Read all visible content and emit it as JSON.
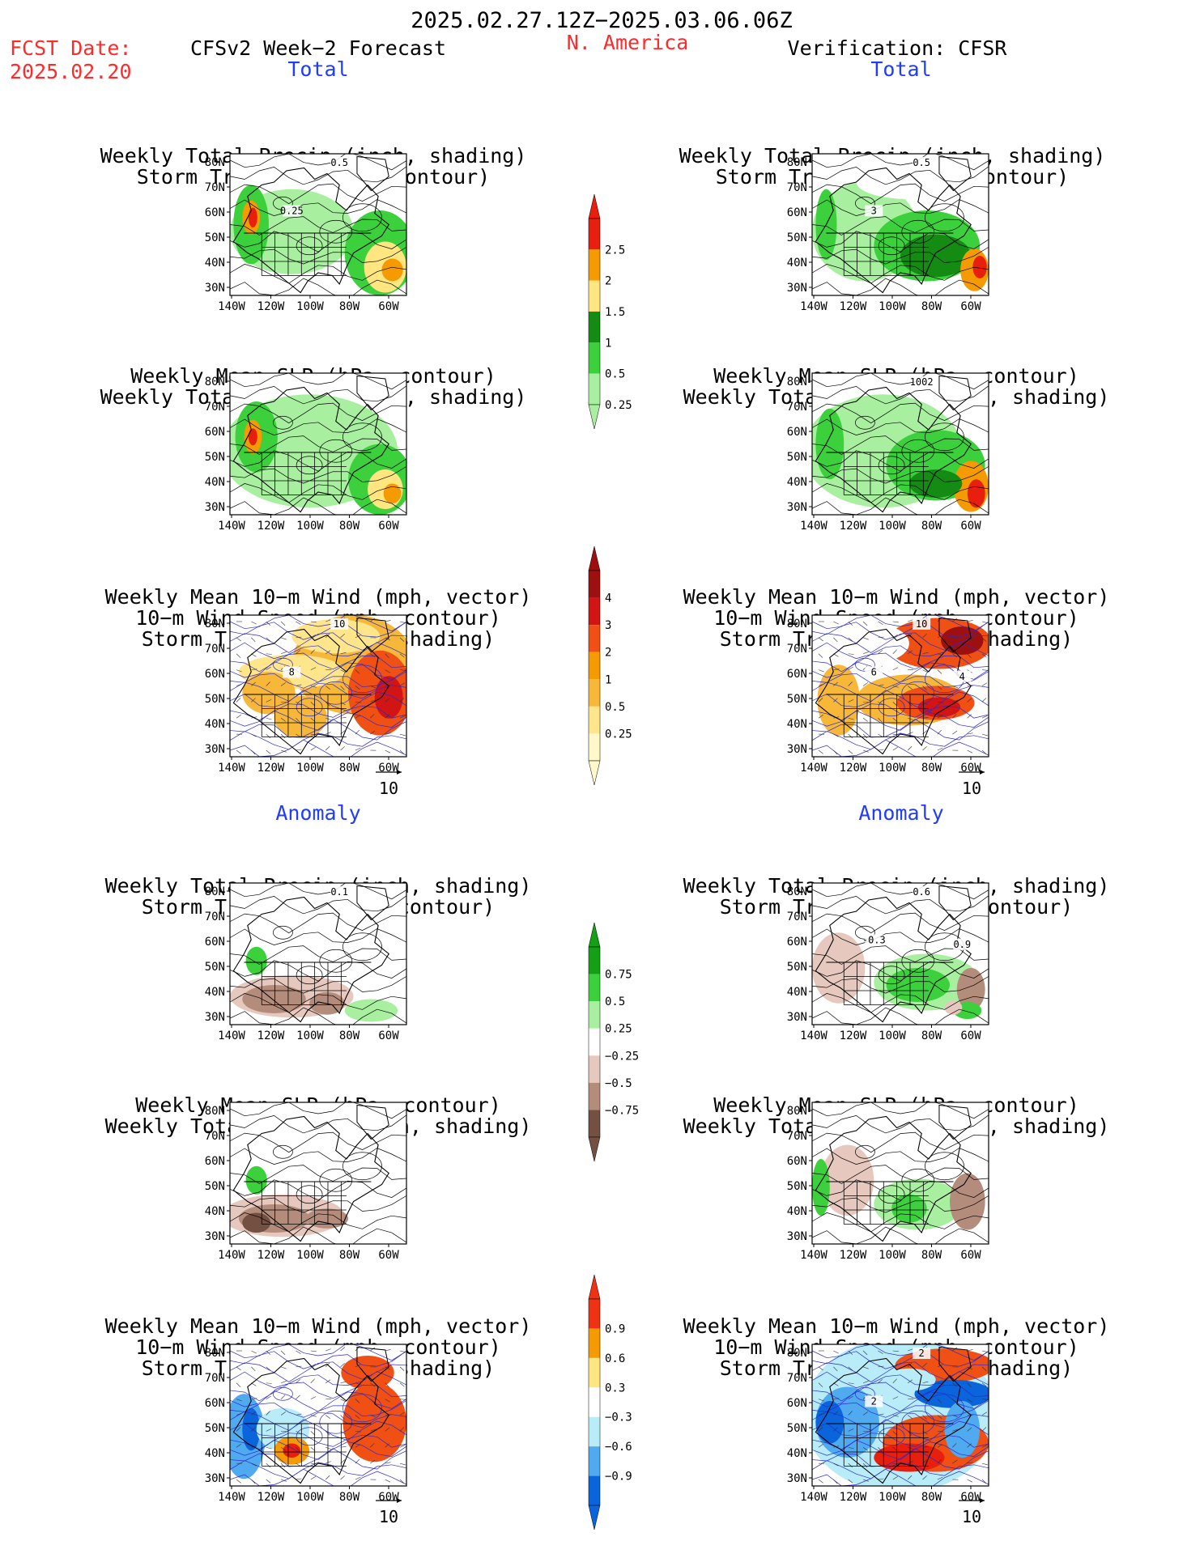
{
  "header": {
    "date_range": "2025.02.27.12Z−2025.03.06.06Z",
    "fcst_label": "FCST Date:",
    "fcst_date": "2025.02.20",
    "forecast_title": "CFSv2 Week−2 Forecast",
    "region": "N. America",
    "verification": "Verification: CFSR"
  },
  "sections": {
    "total": "Total",
    "anomaly": "Anomaly"
  },
  "panel_titles": {
    "precip_storm": [
      "Weekly Total Precip (inch, shading)",
      "Storm Track Density (contour)"
    ],
    "slp_precip": [
      "Weekly Mean SLP (hPa, contour)",
      "Weekly Total Precip (inch, shading)"
    ],
    "wind_storm": [
      "Weekly Mean 10−m Wind (mph, vector)",
      "10−m Wind Speed (mph, contour)",
      "Storm Track Density (shading)"
    ]
  },
  "axes": {
    "lat_labels": [
      "80N",
      "70N",
      "60N",
      "50N",
      "40N",
      "30N"
    ],
    "lon_labels": [
      "140W",
      "120W",
      "100W",
      "80W",
      "60W"
    ]
  },
  "vector_ref": "10",
  "colorbars": [
    {
      "id": "total-precip",
      "labels": [
        "2.5",
        "2",
        "1.5",
        "1",
        "0.5",
        "0.25"
      ],
      "colors": [
        "#e81e0e",
        "#f59a00",
        "#ffe680",
        "#148c14",
        "#3cd13c",
        "#a8f0a0"
      ]
    },
    {
      "id": "total-storm",
      "labels": [
        "4",
        "3",
        "2",
        "1",
        "0.5",
        "0.25"
      ],
      "colors": [
        "#9e1010",
        "#d21414",
        "#f05014",
        "#f59a00",
        "#f7b83a",
        "#ffe68a",
        "#fff8c8"
      ]
    },
    {
      "id": "anom-precip",
      "labels": [
        "0.75",
        "0.5",
        "0.25",
        "−0.25",
        "−0.5",
        "−0.75"
      ],
      "colors": [
        "#14a014",
        "#3cd13c",
        "#a8f0a0",
        "#ffffff",
        "#e6c8be",
        "#b48c7c",
        "#735042"
      ]
    },
    {
      "id": "anom-storm",
      "labels": [
        "0.9",
        "0.6",
        "0.3",
        "−0.3",
        "−0.6",
        "−0.9"
      ],
      "colors": [
        "#f03214",
        "#f59a00",
        "#ffe680",
        "#ffffff",
        "#b8ecf8",
        "#50aaf0",
        "#0a64dc"
      ]
    }
  ],
  "map_labels": {
    "l1": [
      "0.5",
      "0.25"
    ],
    "r1": [
      "0.5",
      "3"
    ],
    "r2": [
      "1002"
    ],
    "l3": [
      "10",
      "8"
    ],
    "r3": [
      "10",
      "6",
      "4"
    ],
    "l4": [
      "0.1"
    ],
    "r4": [
      "0.6",
      "-0.3",
      "0.9"
    ],
    "r6": [
      "2",
      "2"
    ]
  }
}
